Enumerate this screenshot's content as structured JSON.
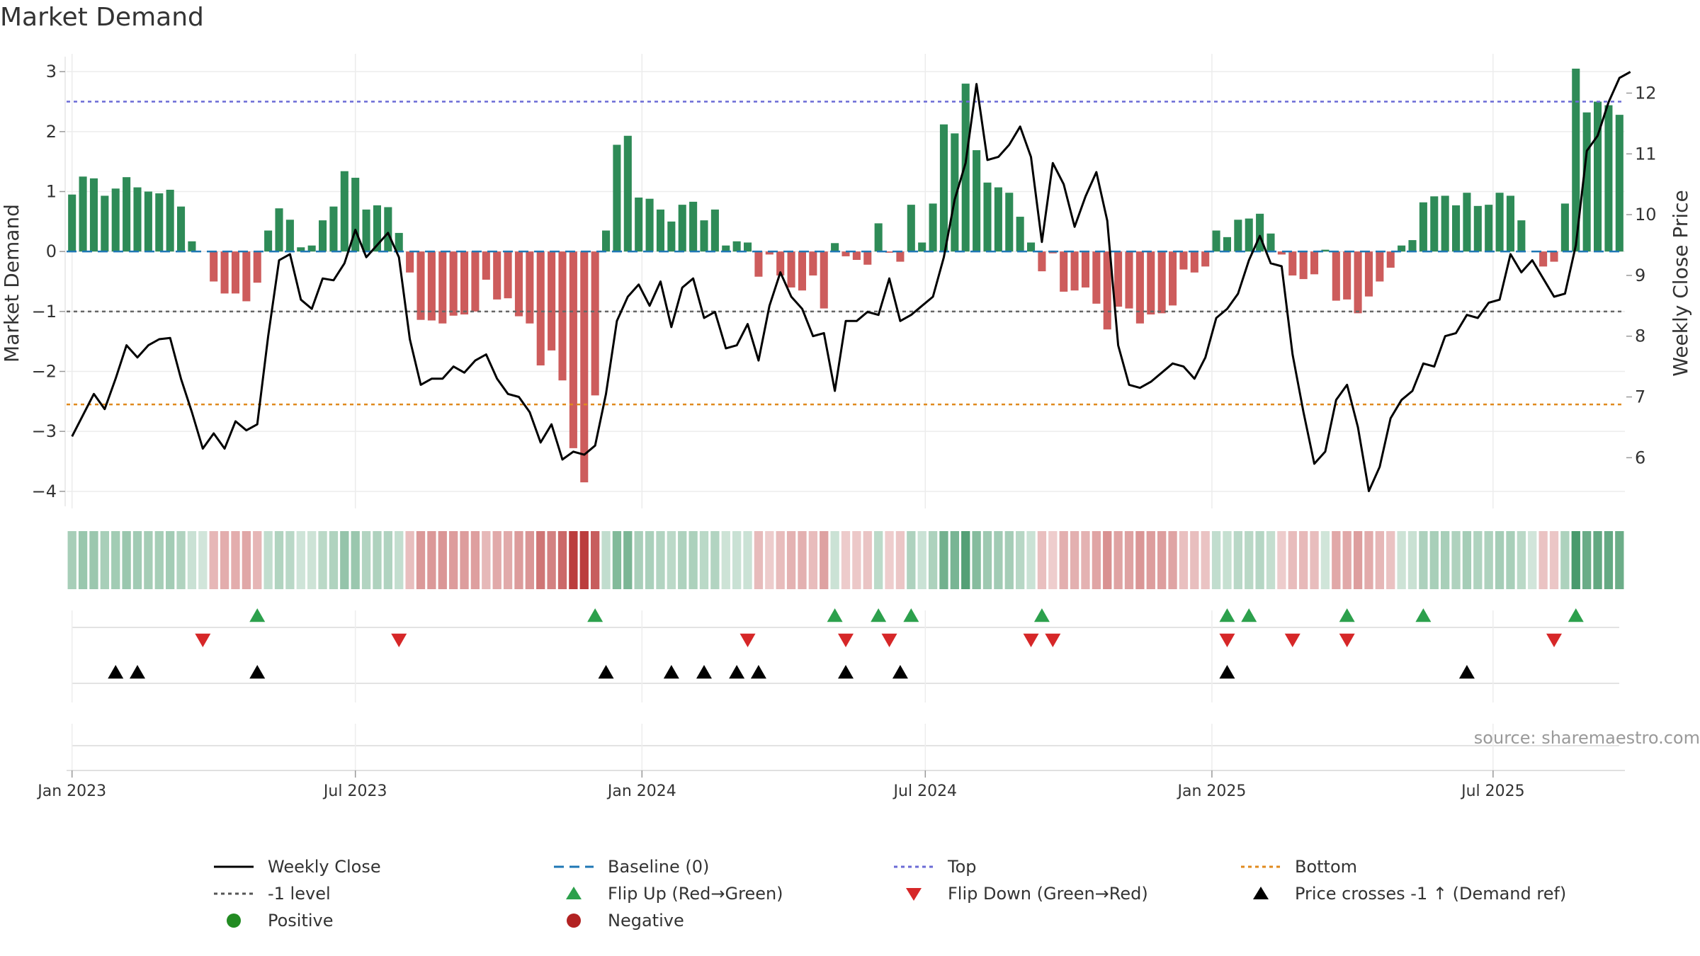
{
  "chart_data": {
    "type": "bar",
    "title": "Market Demand",
    "ylabel": "Market Demand",
    "y2label": "Weekly Close Price",
    "ylim": [
      -4.25,
      3.25
    ],
    "y2lim": [
      5.2,
      12.6
    ],
    "yticks": [
      3,
      2,
      1,
      0,
      -1,
      -2,
      -3,
      -4
    ],
    "y2ticks": [
      12,
      11,
      10,
      9,
      8,
      7,
      6
    ],
    "x_start": "2023-01-02",
    "x_step_days": 7,
    "xticks": [
      {
        "label": "Jan 2023",
        "week": 1
      },
      {
        "label": "Jul 2023",
        "week": 27
      },
      {
        "label": "Jan 2024",
        "week": 53.3
      },
      {
        "label": "Jul 2024",
        "week": 79.3
      },
      {
        "label": "Jan 2025",
        "week": 105.6
      },
      {
        "label": "Jul 2025",
        "week": 131.4
      }
    ],
    "levels": {
      "top": 2.5,
      "bottom": -2.55,
      "minus_one": -1,
      "baseline": 0
    },
    "demand": [
      0.95,
      1.25,
      1.22,
      0.93,
      1.05,
      1.24,
      1.07,
      1.0,
      0.97,
      1.03,
      0.75,
      0.17,
      0,
      -0.5,
      -0.7,
      -0.7,
      -0.83,
      -0.52,
      0.35,
      0.72,
      0.53,
      0.07,
      0.1,
      0.52,
      0.75,
      1.34,
      1.23,
      0.7,
      0.77,
      0.74,
      0.31,
      -0.35,
      -1.14,
      -1.15,
      -1.2,
      -1.07,
      -1.05,
      -1.0,
      -0.47,
      -0.8,
      -0.78,
      -1.08,
      -1.2,
      -1.9,
      -1.65,
      -2.15,
      -3.28,
      -3.85,
      -2.4,
      0.35,
      1.78,
      1.93,
      0.9,
      0.88,
      0.7,
      0.5,
      0.78,
      0.83,
      0.52,
      0.7,
      0.1,
      0.17,
      0.15,
      -0.42,
      -0.05,
      -0.4,
      -0.6,
      -0.65,
      -0.4,
      -0.95,
      0.14,
      -0.08,
      -0.14,
      -0.22,
      0.47,
      -0.02,
      -0.17,
      0.78,
      0.15,
      0.8,
      2.12,
      1.97,
      2.8,
      1.69,
      1.15,
      1.07,
      0.98,
      0.58,
      0.15,
      -0.33,
      -0.03,
      -0.67,
      -0.65,
      -0.6,
      -0.87,
      -1.3,
      -0.92,
      -0.95,
      -1.2,
      -1.05,
      -1.03,
      -0.9,
      -0.3,
      -0.35,
      -0.25,
      0.35,
      0.24,
      0.53,
      0.55,
      0.63,
      0.3,
      -0.05,
      -0.4,
      -0.46,
      -0.38,
      0.03,
      -0.82,
      -0.8,
      -1.03,
      -0.75,
      -0.5,
      -0.27,
      0.1,
      0.19,
      0.82,
      0.92,
      0.93,
      0.77,
      0.98,
      0.76,
      0.78,
      0.98,
      0.93,
      0.52,
      0.0,
      -0.25,
      -0.17,
      0.8,
      3.05,
      2.32,
      2.5,
      2.44,
      2.28
    ],
    "weekly_close": [
      6.35,
      6.7,
      7.05,
      6.8,
      7.3,
      7.85,
      7.65,
      7.85,
      7.95,
      7.97,
      7.3,
      6.75,
      6.15,
      6.4,
      6.15,
      6.6,
      6.45,
      6.55,
      8.0,
      9.25,
      9.35,
      8.6,
      8.45,
      8.95,
      8.92,
      9.2,
      9.75,
      9.3,
      9.5,
      9.7,
      9.3,
      7.95,
      7.2,
      7.3,
      7.3,
      7.5,
      7.4,
      7.6,
      7.7,
      7.3,
      7.05,
      7.0,
      6.75,
      6.25,
      6.55,
      5.97,
      6.1,
      6.05,
      6.2,
      7.05,
      8.25,
      8.65,
      8.85,
      8.5,
      8.9,
      8.15,
      8.8,
      8.95,
      8.3,
      8.4,
      7.8,
      7.85,
      8.2,
      7.6,
      8.5,
      9.05,
      8.65,
      8.45,
      8.0,
      8.05,
      7.1,
      8.25,
      8.25,
      8.4,
      8.35,
      8.95,
      8.25,
      8.35,
      8.5,
      8.65,
      9.3,
      10.25,
      10.85,
      12.15,
      10.9,
      10.95,
      11.15,
      11.45,
      10.95,
      9.55,
      10.85,
      10.5,
      9.8,
      10.3,
      10.7,
      9.9,
      7.85,
      7.2,
      7.15,
      7.25,
      7.4,
      7.55,
      7.5,
      7.3,
      7.65,
      8.3,
      8.45,
      8.7,
      9.25,
      9.65,
      9.2,
      9.15,
      7.7,
      6.75,
      5.9,
      6.1,
      6.95,
      7.2,
      6.5,
      5.45,
      5.85,
      6.65,
      6.95,
      7.1,
      7.55,
      7.5,
      8.0,
      8.05,
      8.35,
      8.3,
      8.55,
      8.6,
      9.35,
      9.05,
      9.25,
      8.95,
      8.65,
      8.7,
      9.5,
      11.05,
      11.3,
      11.85,
      12.25,
      12.35
    ]
  },
  "x_tick_labels": [
    "Jan 2023",
    "Jul 2023",
    "Jan 2024",
    "Jul 2024",
    "Jan 2025",
    "Jul 2025"
  ],
  "events": {
    "flip_up_weeks": [
      18,
      49,
      71,
      75,
      78,
      90,
      107,
      109,
      118,
      125,
      139
    ],
    "flip_down_weeks": [
      13,
      31,
      63,
      72,
      76,
      89,
      91,
      107,
      113,
      118,
      137
    ],
    "price_cross_weeks": [
      5,
      7,
      18,
      50,
      56,
      59,
      62,
      64,
      72,
      77,
      107,
      129
    ]
  },
  "source_text": "source: sharemaestro.com",
  "legend": [
    {
      "label": "Weekly Close",
      "kind": "line",
      "color": "#000000",
      "dash": ""
    },
    {
      "label": "Baseline (0)",
      "kind": "line",
      "color": "#1f77b4",
      "dash": "14,8"
    },
    {
      "label": "Top",
      "kind": "line",
      "color": "#6b6bd6",
      "dash": "5,5"
    },
    {
      "label": "Bottom",
      "kind": "line",
      "color": "#e08a1e",
      "dash": "5,5"
    },
    {
      "label": "-1 level",
      "kind": "line",
      "color": "#555555",
      "dash": "5,5"
    },
    {
      "label": "Flip Up (Red→Green)",
      "kind": "tri-up",
      "color": "#2ca04c"
    },
    {
      "label": "Flip Down (Green→Red)",
      "kind": "tri-down",
      "color": "#d62728"
    },
    {
      "label": "Price crosses -1 ↑ (Demand ref)",
      "kind": "tri-up",
      "color": "#000000"
    },
    {
      "label": "Positive",
      "kind": "dot",
      "color": "#228b22"
    },
    {
      "label": "Negative",
      "kind": "dot",
      "color": "#b22222"
    }
  ],
  "colors": {
    "positive": "#2e8b57",
    "negative": "#cd5c5c",
    "price": "#000000",
    "heat_positive": "#2e8b57",
    "heat_negative": "#b22222"
  }
}
